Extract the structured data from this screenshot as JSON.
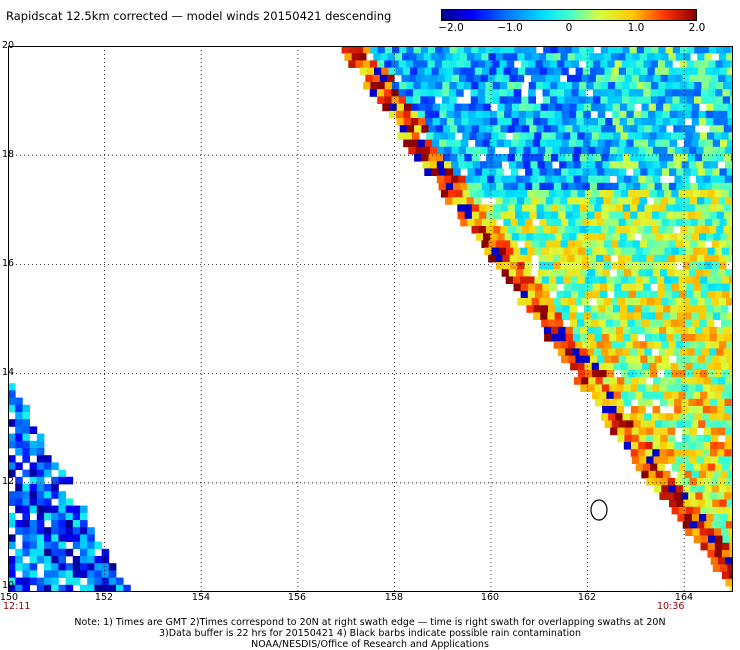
{
  "title": "Rapidscat 12.5km corrected — model winds 20150421 descending",
  "colorbar": {
    "labels": [
      "−2.0",
      "−1.0",
      "0",
      "1.0",
      "2.0"
    ],
    "min": -2.0,
    "max": 2.0
  },
  "axes": {
    "lon_ticks": [
      "150",
      "152",
      "154",
      "156",
      "158",
      "160",
      "162",
      "164"
    ],
    "lat_ticks": [
      "20",
      "18",
      "16",
      "14",
      "12",
      "10"
    ],
    "lon_range": [
      150,
      165
    ],
    "lat_range": [
      10,
      20
    ],
    "grid": "dotted"
  },
  "times": {
    "left": "12:11",
    "right": "10:36"
  },
  "notes": [
    "Note: 1) Times are GMT 2)Times correspond to 20N at right swath edge — time is right swath for overlapping swaths at 20N",
    "3)Data buffer is 22 hrs for 20150421 4) Black barbs indicate possible rain contamination",
    "NOAA/NESDIS/Office of Research and Applications"
  ],
  "colors": {
    "text": "#000000",
    "time_label": "#8b0000",
    "rain_contour": "#000000"
  }
}
